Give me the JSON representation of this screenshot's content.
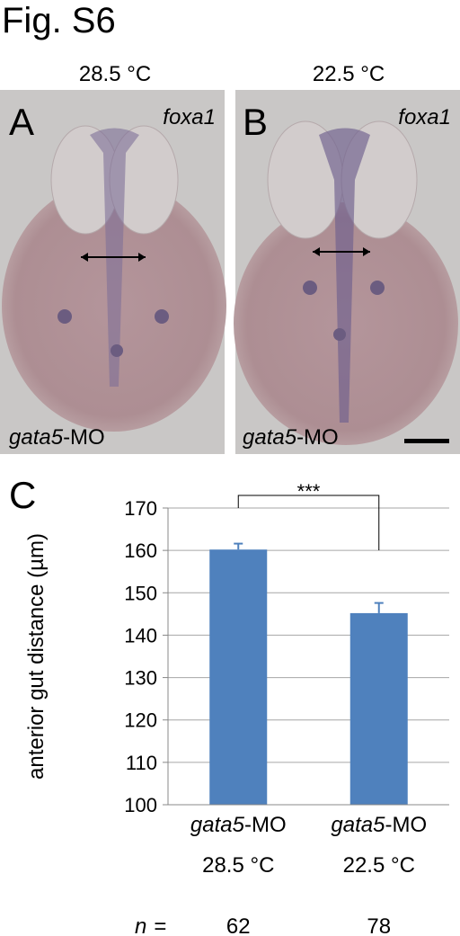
{
  "figure_label": "Fig. S6",
  "panels": [
    {
      "label": "A",
      "temperature": "28.5 °C",
      "gene": "foxa1",
      "morpholino_gene": "gata5",
      "morpholino_suffix": "-MO"
    },
    {
      "label": "B",
      "temperature": "22.5 °C",
      "gene": "foxa1",
      "morpholino_gene": "gata5",
      "morpholino_suffix": "-MO"
    }
  ],
  "chart_data": {
    "type": "bar",
    "panel_label": "C",
    "y_label": "anterior gut distance (µm)",
    "categories": [
      {
        "gene": "gata5",
        "suffix": "-MO",
        "temperature": "28.5 °C"
      },
      {
        "gene": "gata5",
        "suffix": "-MO",
        "temperature": "22.5 °C"
      }
    ],
    "values": [
      160.2,
      145.2
    ],
    "errors": [
      1.4,
      2.4
    ],
    "color": "#4f81bd",
    "ylim": [
      100,
      170
    ],
    "yticks": [
      100,
      110,
      120,
      130,
      140,
      150,
      160,
      170
    ],
    "grid": true,
    "significance": "***",
    "n_symbol": "n",
    "n_sign": "=",
    "n_values": [
      "62",
      "78"
    ]
  }
}
